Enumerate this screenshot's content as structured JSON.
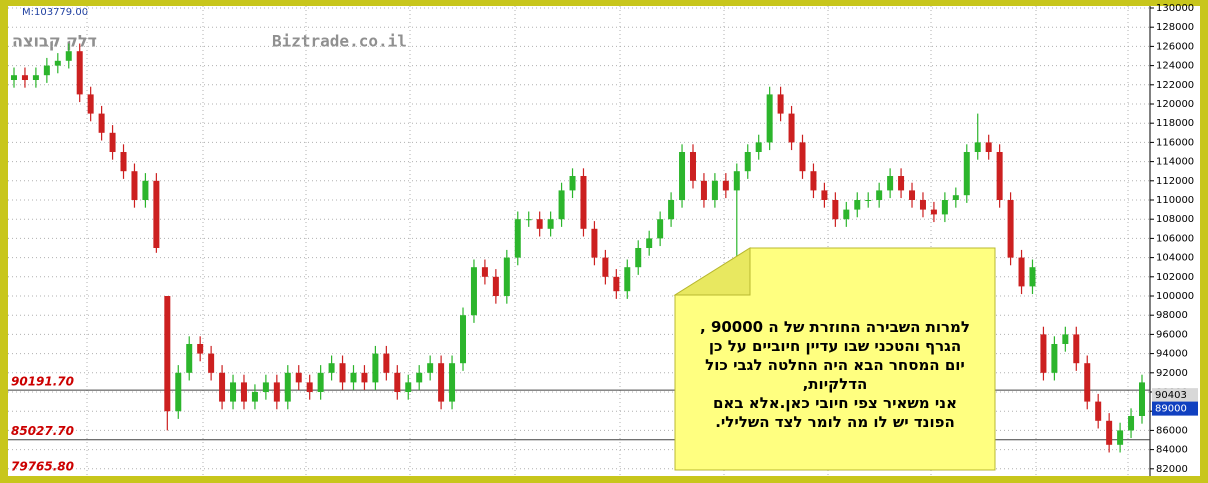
{
  "chart_data": {
    "type": "candlestick",
    "header_label": "M:103779.00",
    "watermark_left": "דלק קבוצה",
    "watermark_center": "Biztrade.co.il",
    "up_color": "#2cb52c",
    "down_color": "#cc2020",
    "ylim": [
      81354,
      130000
    ],
    "yticks": [
      82000,
      84000,
      86000,
      88000,
      90000,
      92000,
      94000,
      96000,
      98000,
      100000,
      102000,
      104000,
      106000,
      108000,
      110000,
      112000,
      114000,
      116000,
      118000,
      120000,
      122000,
      124000,
      126000,
      128000,
      130000
    ],
    "grid": true,
    "levels": [
      {
        "value": 90191.7,
        "label": "90191.70"
      },
      {
        "value": 85027.7,
        "label": "85027.70"
      },
      {
        "value": 79765.8,
        "label": "79765.80"
      }
    ],
    "price_markers": [
      {
        "value": 90403,
        "color": "#d8d8d8"
      },
      {
        "value": 89000,
        "color": "#1040c0"
      }
    ],
    "open": [
      122500,
      123000,
      122500,
      123000,
      124000,
      124500,
      125500,
      121000,
      119000,
      117000,
      115000,
      113000,
      110000,
      112000,
      100000,
      88000,
      92000,
      95000,
      94000,
      92000,
      89000,
      91000,
      89000,
      90000,
      91000,
      89000,
      92000,
      91000,
      90000,
      92000,
      93000,
      91000,
      92000,
      91000,
      94000,
      92000,
      90000,
      91000,
      92000,
      93000,
      89000,
      93000,
      98000,
      103000,
      102000,
      100000,
      104000,
      108000,
      108000,
      107000,
      108000,
      111000,
      112500,
      107000,
      104000,
      102000,
      100500,
      103000,
      105000,
      106000,
      108000,
      110000,
      115000,
      112000,
      110000,
      112000,
      111000,
      113000,
      115000,
      116000,
      121000,
      119000,
      116000,
      113000,
      111000,
      110000,
      108000,
      109000,
      110000,
      110000,
      111000,
      112500,
      111000,
      110000,
      109000,
      108500,
      110000,
      110500,
      115000,
      116000,
      115000,
      110000,
      104000,
      101000,
      96000,
      92000,
      95000,
      96000,
      93000,
      89000,
      87000,
      84500,
      86000,
      87500
    ],
    "high": [
      123800,
      123800,
      123800,
      124800,
      125300,
      126300,
      126300,
      121800,
      119800,
      117800,
      115800,
      113800,
      112800,
      112800,
      100000,
      92800,
      95800,
      95800,
      94800,
      92800,
      91800,
      91800,
      90800,
      91800,
      91800,
      92800,
      92800,
      91800,
      92800,
      93800,
      93800,
      92800,
      92800,
      94800,
      94800,
      92800,
      91800,
      92800,
      93800,
      93800,
      93800,
      98800,
      103800,
      103800,
      102800,
      104800,
      108800,
      108800,
      108800,
      108800,
      111800,
      113300,
      113300,
      107800,
      104800,
      102800,
      103800,
      105800,
      106800,
      108800,
      110800,
      115800,
      115800,
      112800,
      112800,
      112800,
      113800,
      115800,
      116800,
      121800,
      121800,
      119800,
      116800,
      113800,
      111800,
      110800,
      109800,
      110800,
      110800,
      111800,
      113300,
      113300,
      111800,
      110800,
      109800,
      110800,
      111300,
      115800,
      119000,
      116800,
      115800,
      110800,
      104800,
      103800,
      96800,
      95800,
      96800,
      96800,
      93800,
      89800,
      87800,
      86800,
      88300,
      91800
    ],
    "low": [
      121700,
      121700,
      121700,
      122200,
      123200,
      123700,
      120200,
      118200,
      116200,
      114200,
      112200,
      109200,
      109200,
      104500,
      86000,
      87200,
      91200,
      93200,
      91200,
      88200,
      88200,
      88200,
      88200,
      89200,
      88200,
      88200,
      90200,
      89200,
      89200,
      91200,
      90200,
      90200,
      90200,
      90200,
      91200,
      89200,
      89200,
      90200,
      91200,
      88200,
      88200,
      92200,
      97200,
      101200,
      99200,
      99200,
      103200,
      107200,
      106200,
      106200,
      107200,
      110200,
      106200,
      103200,
      101200,
      99700,
      99700,
      102200,
      104200,
      105200,
      107200,
      109200,
      111200,
      109200,
      109200,
      110200,
      103000,
      112200,
      114200,
      115200,
      118200,
      115200,
      112200,
      110200,
      109200,
      107200,
      107200,
      108200,
      109200,
      109200,
      110200,
      110200,
      109200,
      108200,
      107700,
      107700,
      109200,
      109700,
      114200,
      114200,
      109200,
      103200,
      100200,
      100200,
      91200,
      91200,
      94200,
      92200,
      88200,
      86200,
      83700,
      83700,
      85200,
      86700
    ],
    "close": [
      123000,
      122500,
      123000,
      124000,
      124500,
      125500,
      121000,
      119000,
      117000,
      115000,
      113000,
      110000,
      112000,
      105000,
      88000,
      92000,
      95000,
      94000,
      92000,
      89000,
      91000,
      89000,
      90000,
      91000,
      89000,
      92000,
      91000,
      90000,
      92000,
      93000,
      91000,
      92000,
      91000,
      94000,
      92000,
      90000,
      91000,
      92000,
      93000,
      89000,
      93000,
      98000,
      103000,
      102000,
      100000,
      104000,
      108000,
      108000,
      107000,
      108000,
      111000,
      112500,
      107000,
      104000,
      102000,
      100500,
      103000,
      105000,
      106000,
      108000,
      110000,
      115000,
      112000,
      110000,
      112000,
      111000,
      113000,
      115000,
      116000,
      121000,
      119000,
      116000,
      113000,
      111000,
      110000,
      108000,
      109000,
      110000,
      110000,
      111000,
      112500,
      111000,
      110000,
      109000,
      108500,
      110000,
      110500,
      115000,
      116000,
      115000,
      110000,
      104000,
      101000,
      103000,
      92000,
      95000,
      96000,
      93000,
      89000,
      87000,
      84500,
      86000,
      87500,
      91000
    ],
    "note": {
      "lines": [
        "למרות השבירה  החוזרת של  ה 90000 ,",
        "הגרף והטכני  שבו  עדיין חיוביים   על כן",
        "יום המסחר  הבא  היה  החלטה  לגבי כול",
        "הדלקיות,",
        "אני  משאיר    צפי  חיובי  כאן.אלא  באם",
        "הפונד  יש  לו  מה לומר    לצד  השלילי."
      ]
    }
  }
}
